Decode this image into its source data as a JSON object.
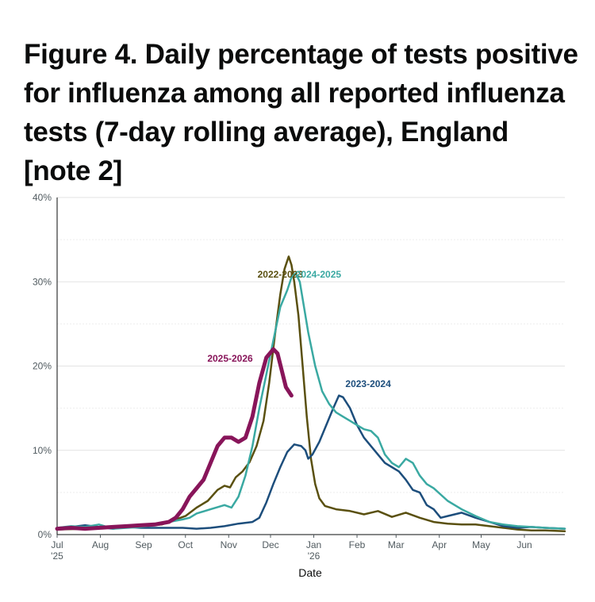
{
  "title": "Figure 4. Daily percentage of tests positive for influenza among all reported influenza tests (7-day rolling average), England [note 2]",
  "chart_data": {
    "type": "line",
    "title": "Figure 4. Daily percentage of tests positive for influenza among all reported influenza tests (7-day rolling average), England [note 2]",
    "xlabel": "Date",
    "ylabel": "",
    "xlim": [
      0,
      364
    ],
    "ylim": [
      0,
      40
    ],
    "x_unit": "days since 1 Jul",
    "grid": true,
    "y_ticks": [
      {
        "value": 0,
        "label": "0%"
      },
      {
        "value": 10,
        "label": "10%"
      },
      {
        "value": 20,
        "label": "20%"
      },
      {
        "value": 30,
        "label": "30%"
      },
      {
        "value": 40,
        "label": "40%"
      }
    ],
    "x_ticks": [
      {
        "value": 0,
        "label": "Jul",
        "sublabel": "'25"
      },
      {
        "value": 31,
        "label": "Aug",
        "sublabel": ""
      },
      {
        "value": 62,
        "label": "Sep",
        "sublabel": ""
      },
      {
        "value": 92,
        "label": "Oct",
        "sublabel": ""
      },
      {
        "value": 123,
        "label": "Nov",
        "sublabel": ""
      },
      {
        "value": 153,
        "label": "Dec",
        "sublabel": ""
      },
      {
        "value": 184,
        "label": "Jan",
        "sublabel": "'26"
      },
      {
        "value": 215,
        "label": "Feb",
        "sublabel": ""
      },
      {
        "value": 243,
        "label": "Mar",
        "sublabel": ""
      },
      {
        "value": 274,
        "label": "Apr",
        "sublabel": ""
      },
      {
        "value": 304,
        "label": "May",
        "sublabel": ""
      },
      {
        "value": 335,
        "label": "Jun",
        "sublabel": ""
      }
    ],
    "series": [
      {
        "name": "2022-2023",
        "color": "#5a5010",
        "width": 2.5,
        "label_pos": {
          "x": 160,
          "y": 30.5
        },
        "label_anchor": "middle",
        "points": [
          [
            0,
            0.6
          ],
          [
            20,
            0.7
          ],
          [
            40,
            0.8
          ],
          [
            60,
            1.0
          ],
          [
            75,
            1.2
          ],
          [
            85,
            1.8
          ],
          [
            92,
            2.2
          ],
          [
            100,
            3.2
          ],
          [
            108,
            4.0
          ],
          [
            115,
            5.3
          ],
          [
            120,
            5.8
          ],
          [
            124,
            5.6
          ],
          [
            128,
            6.8
          ],
          [
            133,
            7.5
          ],
          [
            138,
            8.6
          ],
          [
            143,
            10.5
          ],
          [
            148,
            13.5
          ],
          [
            152,
            18.0
          ],
          [
            156,
            23.5
          ],
          [
            160,
            28.5
          ],
          [
            163,
            31.5
          ],
          [
            166,
            33.0
          ],
          [
            168,
            32.0
          ],
          [
            170,
            30.0
          ],
          [
            173,
            26.0
          ],
          [
            176,
            20.0
          ],
          [
            179,
            14.0
          ],
          [
            182,
            9.0
          ],
          [
            185,
            6.0
          ],
          [
            188,
            4.3
          ],
          [
            192,
            3.4
          ],
          [
            200,
            3.0
          ],
          [
            210,
            2.8
          ],
          [
            220,
            2.4
          ],
          [
            230,
            2.8
          ],
          [
            240,
            2.1
          ],
          [
            250,
            2.6
          ],
          [
            260,
            2.0
          ],
          [
            270,
            1.5
          ],
          [
            280,
            1.3
          ],
          [
            290,
            1.2
          ],
          [
            300,
            1.2
          ],
          [
            310,
            1.0
          ],
          [
            320,
            0.8
          ],
          [
            330,
            0.6
          ],
          [
            340,
            0.5
          ],
          [
            350,
            0.5
          ],
          [
            364,
            0.4
          ]
        ]
      },
      {
        "name": "2023-2024",
        "color": "#1d4e7c",
        "width": 2.5,
        "label_pos": {
          "x": 223,
          "y": 17.5
        },
        "label_anchor": "middle",
        "points": [
          [
            0,
            0.8
          ],
          [
            10,
            0.9
          ],
          [
            20,
            1.1
          ],
          [
            30,
            0.9
          ],
          [
            40,
            0.7
          ],
          [
            50,
            0.9
          ],
          [
            60,
            0.8
          ],
          [
            70,
            0.8
          ],
          [
            80,
            0.8
          ],
          [
            90,
            0.8
          ],
          [
            100,
            0.7
          ],
          [
            110,
            0.8
          ],
          [
            120,
            1.0
          ],
          [
            130,
            1.3
          ],
          [
            140,
            1.5
          ],
          [
            145,
            2.0
          ],
          [
            150,
            3.8
          ],
          [
            155,
            6.0
          ],
          [
            160,
            8.0
          ],
          [
            165,
            9.8
          ],
          [
            170,
            10.7
          ],
          [
            175,
            10.5
          ],
          [
            178,
            10.0
          ],
          [
            180,
            9.0
          ],
          [
            183,
            9.5
          ],
          [
            188,
            11.0
          ],
          [
            193,
            13.0
          ],
          [
            198,
            15.0
          ],
          [
            202,
            16.5
          ],
          [
            205,
            16.3
          ],
          [
            210,
            15.0
          ],
          [
            215,
            13.0
          ],
          [
            220,
            11.5
          ],
          [
            225,
            10.5
          ],
          [
            230,
            9.5
          ],
          [
            235,
            8.5
          ],
          [
            240,
            8.0
          ],
          [
            245,
            7.5
          ],
          [
            250,
            6.5
          ],
          [
            255,
            5.3
          ],
          [
            260,
            5.0
          ],
          [
            265,
            3.5
          ],
          [
            270,
            3.0
          ],
          [
            275,
            2.0
          ],
          [
            280,
            2.2
          ],
          [
            290,
            2.6
          ],
          [
            300,
            2.0
          ],
          [
            310,
            1.5
          ],
          [
            320,
            1.0
          ],
          [
            330,
            0.8
          ],
          [
            340,
            0.9
          ],
          [
            350,
            0.8
          ],
          [
            364,
            0.7
          ]
        ]
      },
      {
        "name": "2024-2025",
        "color": "#3aa9a2",
        "width": 2.5,
        "label_pos": {
          "x": 171,
          "y": 30.5
        },
        "label_anchor": "start",
        "points": [
          [
            0,
            0.8
          ],
          [
            10,
            1.0
          ],
          [
            20,
            0.9
          ],
          [
            30,
            1.2
          ],
          [
            40,
            0.7
          ],
          [
            50,
            0.8
          ],
          [
            60,
            0.9
          ],
          [
            70,
            1.1
          ],
          [
            80,
            1.5
          ],
          [
            90,
            1.8
          ],
          [
            95,
            2.0
          ],
          [
            100,
            2.5
          ],
          [
            110,
            3.0
          ],
          [
            120,
            3.5
          ],
          [
            125,
            3.2
          ],
          [
            130,
            4.5
          ],
          [
            135,
            7.0
          ],
          [
            140,
            10.5
          ],
          [
            145,
            15.0
          ],
          [
            150,
            19.0
          ],
          [
            155,
            23.0
          ],
          [
            160,
            27.0
          ],
          [
            165,
            29.0
          ],
          [
            168,
            30.5
          ],
          [
            171,
            31.0
          ],
          [
            174,
            30.0
          ],
          [
            177,
            27.0
          ],
          [
            180,
            24.0
          ],
          [
            185,
            20.0
          ],
          [
            190,
            17.0
          ],
          [
            195,
            15.5
          ],
          [
            200,
            14.5
          ],
          [
            205,
            14.0
          ],
          [
            210,
            13.5
          ],
          [
            215,
            13.0
          ],
          [
            220,
            12.5
          ],
          [
            225,
            12.3
          ],
          [
            230,
            11.5
          ],
          [
            235,
            9.5
          ],
          [
            240,
            8.5
          ],
          [
            245,
            8.0
          ],
          [
            250,
            9.0
          ],
          [
            255,
            8.5
          ],
          [
            260,
            7.0
          ],
          [
            265,
            6.0
          ],
          [
            270,
            5.5
          ],
          [
            280,
            4.0
          ],
          [
            290,
            3.0
          ],
          [
            300,
            2.2
          ],
          [
            310,
            1.5
          ],
          [
            320,
            1.2
          ],
          [
            330,
            1.0
          ],
          [
            340,
            0.9
          ],
          [
            350,
            0.8
          ],
          [
            364,
            0.7
          ]
        ]
      },
      {
        "name": "2025-2026",
        "color": "#88155a",
        "width": 5,
        "label_pos": {
          "x": 124,
          "y": 20.5
        },
        "label_anchor": "middle",
        "points": [
          [
            0,
            0.7
          ],
          [
            10,
            0.8
          ],
          [
            20,
            0.7
          ],
          [
            30,
            0.8
          ],
          [
            40,
            0.9
          ],
          [
            50,
            1.0
          ],
          [
            60,
            1.1
          ],
          [
            70,
            1.2
          ],
          [
            80,
            1.5
          ],
          [
            85,
            2.0
          ],
          [
            90,
            3.0
          ],
          [
            95,
            4.5
          ],
          [
            100,
            5.5
          ],
          [
            105,
            6.5
          ],
          [
            110,
            8.5
          ],
          [
            115,
            10.5
          ],
          [
            120,
            11.5
          ],
          [
            125,
            11.5
          ],
          [
            130,
            11.0
          ],
          [
            135,
            11.5
          ],
          [
            140,
            14.0
          ],
          [
            145,
            18.0
          ],
          [
            150,
            21.0
          ],
          [
            155,
            22.0
          ],
          [
            158,
            21.5
          ],
          [
            161,
            19.5
          ],
          [
            164,
            17.5
          ],
          [
            168,
            16.5
          ]
        ]
      }
    ]
  }
}
